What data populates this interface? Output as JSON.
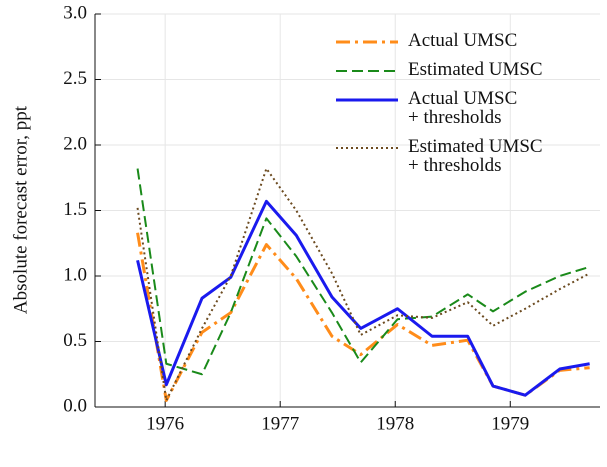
{
  "chart_data": {
    "type": "line",
    "ylabel": "Absolute forecast error, ppt",
    "x": [
      1975.76,
      1976.01,
      1976.32,
      1976.57,
      1976.88,
      1977.14,
      1977.45,
      1977.7,
      1978.02,
      1978.32,
      1978.63,
      1978.85,
      1979.13,
      1979.43,
      1979.69
    ],
    "series": [
      {
        "name": "Actual UMSC",
        "color": "#ff8c1a",
        "dash": "14 5 3 5",
        "width": 3,
        "values": [
          1.33,
          0.05,
          0.57,
          0.72,
          1.24,
          0.98,
          0.54,
          0.4,
          0.63,
          0.47,
          0.51,
          0.16,
          0.09,
          0.28,
          0.3
        ]
      },
      {
        "name": "Estimated UMSC",
        "color": "#1a8a1a",
        "dash": "11 5",
        "width": 2,
        "values": [
          1.82,
          0.33,
          0.25,
          0.72,
          1.44,
          1.15,
          0.72,
          0.34,
          0.67,
          0.69,
          0.86,
          0.73,
          0.88,
          1.0,
          1.07
        ]
      },
      {
        "name": "Actual UMSC\n+ thresholds",
        "color": "#1a1aee",
        "dash": "none",
        "width": 3,
        "values": [
          1.12,
          0.17,
          0.83,
          0.99,
          1.57,
          1.31,
          0.84,
          0.6,
          0.75,
          0.54,
          0.54,
          0.16,
          0.09,
          0.29,
          0.33
        ]
      },
      {
        "name": "Estimated UMSC\n+ thresholds",
        "color": "#6b4a1f",
        "dash": "2 3",
        "width": 2,
        "values": [
          1.52,
          0.05,
          0.6,
          1.0,
          1.82,
          1.5,
          1.02,
          0.55,
          0.7,
          0.68,
          0.8,
          0.62,
          0.75,
          0.9,
          1.02
        ]
      }
    ],
    "xlim": [
      1975.39,
      1979.78
    ],
    "xticks": [
      1976,
      1977,
      1978,
      1979
    ],
    "ylim": [
      0,
      3
    ],
    "yticks": [
      {
        "value": 0,
        "label": "0.0"
      },
      {
        "value": 0.5,
        "label": "0.5"
      },
      {
        "value": 1,
        "label": "1.0"
      },
      {
        "value": 1.5,
        "label": "1.5"
      },
      {
        "value": 2,
        "label": "2.0"
      },
      {
        "value": 2.5,
        "label": "2.5"
      },
      {
        "value": 3,
        "label": "3.0"
      }
    ],
    "grid": true,
    "legend": "upper right"
  }
}
